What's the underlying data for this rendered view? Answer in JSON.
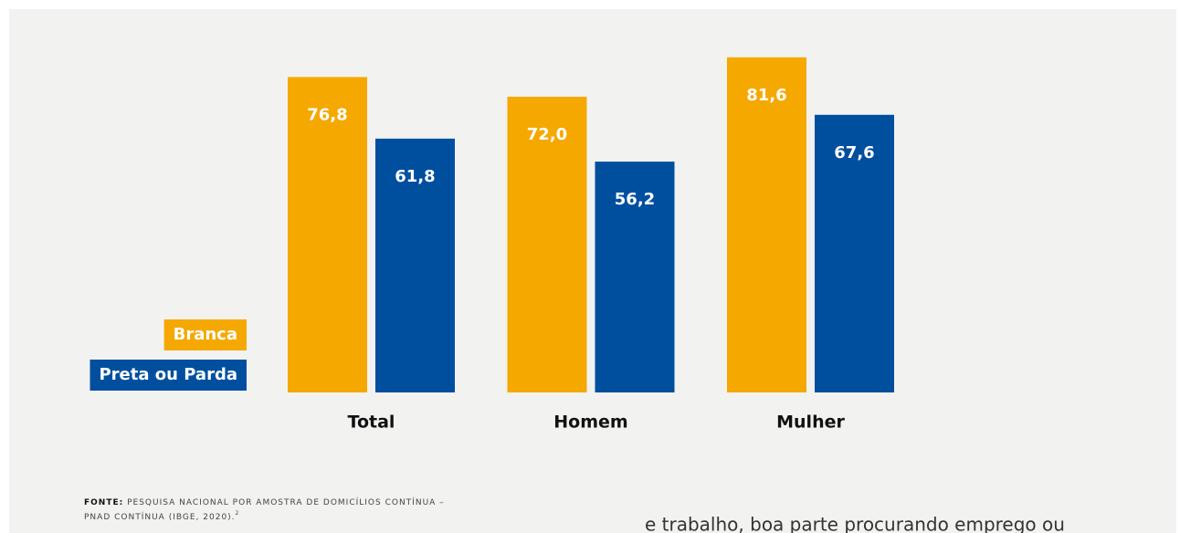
{
  "chart_data": {
    "type": "bar",
    "categories": [
      "Total",
      "Homem",
      "Mulher"
    ],
    "series": [
      {
        "name": "Branca",
        "color": "#f5a800",
        "values": [
          76.8,
          72.0,
          81.6
        ],
        "value_labels": [
          "76,8",
          "72,0",
          "81,6"
        ]
      },
      {
        "name": "Preta ou Parda",
        "color": "#004f9f",
        "values": [
          61.8,
          56.2,
          67.6
        ],
        "value_labels": [
          "61,8",
          "56,2",
          "67,6"
        ]
      }
    ],
    "legend": "left",
    "source": {
      "label": "FONTE:",
      "line1": "PESQUISA NACIONAL POR AMOSTRA DE DOMICÍLIOS CONTÍNUA –",
      "line2": "PNAD CONTÍNUA (IBGE, 2020).",
      "note": "2"
    }
  },
  "body_text": "e trabalho, boa parte procurando emprego ou"
}
